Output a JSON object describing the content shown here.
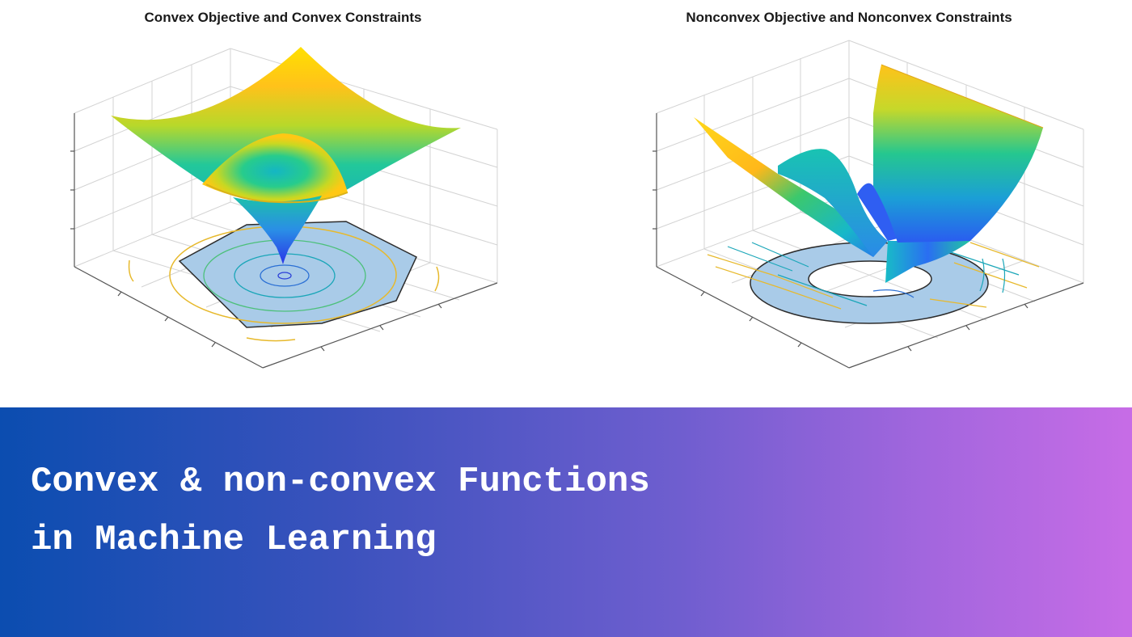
{
  "figure": {
    "left_plot": {
      "title": "Convex Objective and Convex Constraints"
    },
    "right_plot": {
      "title": "Nonconvex Objective and Nonconvex Constraints"
    }
  },
  "banner": {
    "line1": "Convex & non-convex Functions",
    "line2": "in Machine Learning",
    "gradient_start": "#0b4db0",
    "gradient_end": "#c76ce6",
    "text_color": "#ffffff"
  },
  "colors": {
    "surface_high": "#ffd400",
    "surface_mid": "#18c3a6",
    "surface_low": "#2a5cf5",
    "constraint_fill": "#a9cbe8",
    "grid": "#d0d0d0"
  }
}
